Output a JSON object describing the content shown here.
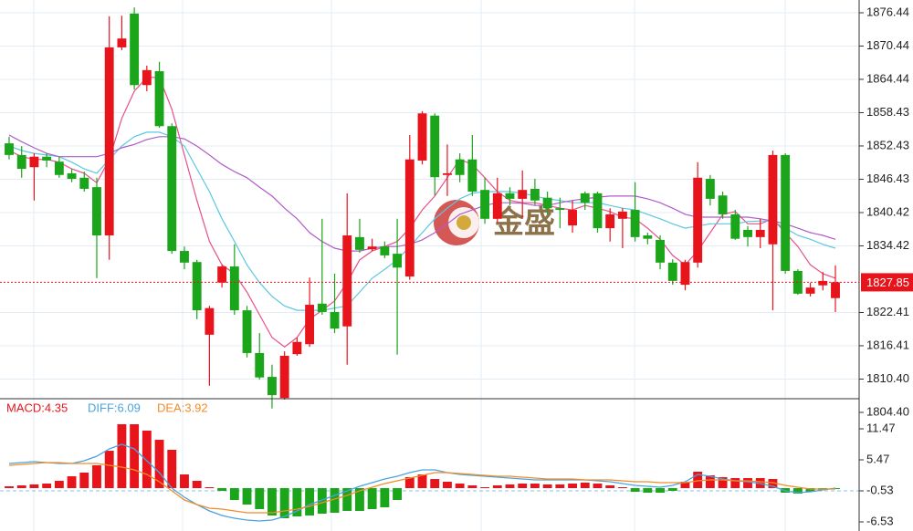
{
  "chart_data": [
    {
      "type": "candlestick",
      "up_color": "#e8141b",
      "down_color": "#1aa51a",
      "open": [
        1852.9,
        1850.8,
        1848.6,
        1850.5,
        1849.6,
        1847.5,
        1846.7,
        1845.0,
        1836.3,
        1870.2,
        1876.3,
        1863.4,
        1865.9,
        1856.0,
        1833.5,
        1831.5,
        1818.4,
        1827.8,
        1830.7,
        1822.8,
        1815.1,
        1810.8,
        1807.0,
        1814.9,
        1816.7,
        1824.0,
        1822.5,
        1819.9,
        1836.0,
        1833.8,
        1834.3,
        1833.0,
        1828.9,
        1849.8,
        1857.9,
        1847.2,
        1850.0,
        1850.0,
        1844.5,
        1839.3,
        1843.9,
        1842.9,
        1844.7,
        1843.1,
        1841.2,
        1838.1,
        1843.9,
        1843.9,
        1837.6,
        1839.3,
        1840.9,
        1836.3,
        1835.5,
        1831.4,
        1827.4,
        1831.4,
        1846.5,
        1843.5,
        1840.1,
        1837.3,
        1836.0,
        1834.7,
        1850.8,
        1829.9,
        1825.8,
        1827.3,
        1825.0
      ],
      "high": [
        1854.1,
        1852.4,
        1851.1,
        1851.1,
        1850.5,
        1848.3,
        1847.8,
        1846.7,
        1875.8,
        1875.9,
        1877.4,
        1866.9,
        1867.6,
        1856.5,
        1834.3,
        1831.9,
        1823.6,
        1831.0,
        1834.7,
        1823.6,
        1818.7,
        1813.0,
        1815.4,
        1817.9,
        1828.7,
        1839.3,
        1829.4,
        1843.9,
        1839.3,
        1835.7,
        1835.2,
        1839.3,
        1854.4,
        1858.7,
        1858.3,
        1852.7,
        1851.1,
        1854.4,
        1846.7,
        1846.7,
        1845.0,
        1848.0,
        1846.5,
        1844.2,
        1843.1,
        1842.6,
        1844.2,
        1844.2,
        1841.2,
        1841.2,
        1845.9,
        1836.8,
        1836.3,
        1832.0,
        1831.9,
        1849.5,
        1847.2,
        1844.2,
        1840.9,
        1838.0,
        1839.3,
        1851.6,
        1851.1,
        1830.2,
        1827.8,
        1829.7,
        1830.9
      ],
      "low": [
        1850.0,
        1846.7,
        1842.6,
        1848.6,
        1846.7,
        1845.9,
        1844.2,
        1828.6,
        1831.9,
        1869.7,
        1862.6,
        1862.3,
        1855.7,
        1833.0,
        1830.2,
        1821.2,
        1809.2,
        1826.9,
        1822.0,
        1814.3,
        1810.3,
        1805.1,
        1806.7,
        1814.6,
        1816.2,
        1822.0,
        1818.7,
        1813.0,
        1833.2,
        1833.5,
        1832.2,
        1814.8,
        1828.3,
        1849.1,
        1843.5,
        1843.4,
        1845.9,
        1843.4,
        1838.4,
        1838.6,
        1841.7,
        1839.3,
        1841.7,
        1840.1,
        1837.6,
        1836.8,
        1840.9,
        1836.8,
        1835.2,
        1834.0,
        1835.2,
        1834.7,
        1830.2,
        1827.4,
        1826.4,
        1830.5,
        1841.7,
        1839.3,
        1835.5,
        1834.3,
        1834.0,
        1822.8,
        1829.4,
        1825.6,
        1825.3,
        1826.4,
        1822.5
      ],
      "close": [
        1850.8,
        1848.3,
        1850.5,
        1849.8,
        1847.2,
        1846.5,
        1844.7,
        1836.3,
        1870.2,
        1871.8,
        1863.4,
        1866.1,
        1856.0,
        1833.5,
        1831.4,
        1822.8,
        1823.2,
        1830.7,
        1822.8,
        1815.1,
        1810.7,
        1807.5,
        1814.6,
        1817.1,
        1823.8,
        1822.5,
        1819.5,
        1836.3,
        1833.7,
        1834.3,
        1832.7,
        1830.5,
        1850.0,
        1858.3,
        1846.8,
        1847.5,
        1847.2,
        1844.2,
        1839.3,
        1843.9,
        1842.9,
        1844.5,
        1842.6,
        1841.2,
        1840.9,
        1840.9,
        1842.2,
        1837.6,
        1840.1,
        1840.6,
        1836.0,
        1835.7,
        1831.4,
        1828.1,
        1831.5,
        1846.7,
        1842.9,
        1840.1,
        1835.7,
        1836.0,
        1837.3,
        1850.8,
        1829.9,
        1825.8,
        1826.9,
        1828.1,
        1827.85
      ],
      "overlays": [
        {
          "color": "#e8508a",
          "values": [
            1851.6,
            1850.5,
            1850.0,
            1850.0,
            1849.5,
            1848.3,
            1847.5,
            1845.8,
            1850.0,
            1857.4,
            1862.3,
            1864.8,
            1864.8,
            1859.0,
            1850.8,
            1842.6,
            1835.2,
            1831.0,
            1829.4,
            1826.1,
            1822.0,
            1817.9,
            1816.2,
            1817.9,
            1821.2,
            1822.8,
            1824.5,
            1827.8,
            1831.9,
            1833.5,
            1834.3,
            1835.2,
            1837.6,
            1840.9,
            1843.4,
            1846.7,
            1850.0,
            1849.1,
            1846.7,
            1844.2,
            1842.6,
            1842.2,
            1842.2,
            1841.7,
            1841.2,
            1840.9,
            1841.7,
            1841.2,
            1840.6,
            1839.6,
            1839.3,
            1837.6,
            1835.6,
            1832.7,
            1831.0,
            1833.5,
            1836.8,
            1840.1,
            1840.6,
            1838.4,
            1838.4,
            1839.3,
            1836.8,
            1834.3,
            1831.0,
            1829.4,
            1828.6
          ]
        },
        {
          "color": "#5bc8e0",
          "values": [
            1852.4,
            1851.6,
            1851.1,
            1850.8,
            1850.5,
            1849.5,
            1848.3,
            1847.5,
            1850.0,
            1852.4,
            1854.1,
            1854.9,
            1854.9,
            1854.1,
            1852.4,
            1848.3,
            1844.2,
            1839.3,
            1835.2,
            1831.0,
            1827.8,
            1825.3,
            1823.6,
            1822.8,
            1822.8,
            1822.8,
            1823.2,
            1823.6,
            1826.1,
            1828.6,
            1830.2,
            1831.9,
            1834.3,
            1836.8,
            1839.3,
            1841.2,
            1842.9,
            1843.9,
            1844.2,
            1844.2,
            1844.2,
            1843.9,
            1843.4,
            1842.9,
            1842.6,
            1842.2,
            1842.2,
            1842.2,
            1841.7,
            1841.2,
            1840.9,
            1840.1,
            1839.3,
            1838.4,
            1837.6,
            1838.0,
            1838.4,
            1838.4,
            1838.4,
            1838.8,
            1838.9,
            1838.9,
            1837.6,
            1836.3,
            1835.6,
            1834.7,
            1834.0
          ]
        },
        {
          "color": "#b05cc8",
          "values": [
            1854.4,
            1853.2,
            1852.1,
            1851.1,
            1850.5,
            1850.5,
            1850.5,
            1850.5,
            1851.1,
            1852.1,
            1852.7,
            1853.6,
            1854.1,
            1854.1,
            1853.7,
            1852.4,
            1850.8,
            1849.1,
            1847.8,
            1846.7,
            1845.0,
            1843.4,
            1841.2,
            1839.3,
            1836.8,
            1835.2,
            1834.0,
            1833.5,
            1833.5,
            1834.0,
            1834.3,
            1834.3,
            1834.7,
            1835.5,
            1836.8,
            1838.4,
            1840.1,
            1840.9,
            1841.7,
            1842.2,
            1842.2,
            1842.1,
            1841.7,
            1841.7,
            1842.2,
            1842.6,
            1842.9,
            1843.2,
            1843.4,
            1843.4,
            1843.4,
            1842.9,
            1842.2,
            1841.2,
            1840.1,
            1839.6,
            1839.6,
            1839.6,
            1839.6,
            1839.6,
            1839.3,
            1838.9,
            1838.4,
            1837.6,
            1836.8,
            1836.3,
            1835.6
          ]
        }
      ],
      "ylim": [
        1803.74,
        1878.74
      ],
      "yticks": [
        1876.44,
        1870.44,
        1864.44,
        1858.43,
        1852.43,
        1846.43,
        1840.42,
        1834.42,
        1822.41,
        1816.41,
        {
          "value": 1810.4,
          "label": "1810.40"
        },
        {
          "value": 1804.4,
          "label": "1804.40"
        }
      ],
      "last_price": 1827.85,
      "last_price_color": "#e8141b",
      "watermark": "金盛",
      "grid": true
    },
    {
      "type": "macd",
      "histogram": {
        "name": "MACD:4.35",
        "up_color": "#e8141b",
        "down_color": "#1aa51a",
        "values": [
          0.35,
          0.53,
          0.71,
          0.88,
          1.41,
          2.29,
          3.0,
          4.41,
          7.23,
          12.35,
          12.35,
          11.12,
          9.35,
          7.41,
          2.65,
          1.41,
          0.18,
          -0.53,
          -2.29,
          -3.18,
          -4.06,
          -5.29,
          -5.82,
          -5.47,
          -5.29,
          -4.94,
          -4.76,
          -4.41,
          -4.41,
          -4.06,
          -3.71,
          -2.29,
          2.12,
          2.65,
          1.76,
          1.24,
          0.88,
          0.53,
          0.18,
          0.53,
          0.71,
          0.88,
          0.88,
          0.71,
          0.71,
          0.88,
          1.06,
          0.88,
          0.53,
          0.18,
          -0.71,
          -0.88,
          -0.88,
          -0.53,
          1.24,
          3.18,
          2.47,
          2.12,
          1.94,
          1.94,
          1.94,
          1.76,
          -0.88,
          -1.06,
          -0.71,
          -0.35,
          -0.18
        ]
      },
      "series": [
        {
          "name": "DIFF:6.09",
          "color": "#4aa3df",
          "values": [
            4.76,
            4.94,
            5.12,
            4.94,
            4.76,
            4.76,
            5.29,
            6.18,
            7.59,
            8.47,
            7.59,
            5.29,
            3.0,
            0.0,
            -1.76,
            -3.18,
            -4.41,
            -5.29,
            -5.82,
            -6.18,
            -6.35,
            -6.18,
            -5.47,
            -4.41,
            -3.18,
            -2.29,
            -1.41,
            -0.53,
            0.35,
            1.06,
            1.76,
            2.29,
            3.0,
            3.53,
            3.53,
            3.0,
            2.65,
            2.47,
            2.29,
            2.12,
            1.94,
            1.76,
            1.59,
            1.59,
            1.59,
            1.59,
            1.59,
            1.41,
            1.24,
            0.88,
            0.53,
            0.35,
            0.18,
            0.53,
            1.24,
            2.65,
            2.29,
            1.76,
            1.41,
            1.24,
            0.88,
            0.35,
            -0.53,
            -0.88,
            -0.71,
            -0.35,
            0.0
          ]
        },
        {
          "name": "DEA:3.92",
          "color": "#f28c28",
          "values": [
            4.41,
            4.59,
            4.76,
            4.94,
            4.94,
            4.76,
            4.76,
            4.76,
            4.41,
            4.06,
            3.53,
            2.65,
            1.24,
            -0.53,
            -2.29,
            -3.18,
            -3.88,
            -4.06,
            -4.41,
            -4.76,
            -4.76,
            -4.76,
            -4.41,
            -4.06,
            -3.53,
            -2.82,
            -2.12,
            -1.41,
            -0.53,
            0.18,
            0.88,
            1.41,
            1.94,
            2.47,
            3.0,
            3.0,
            2.82,
            2.65,
            2.47,
            2.29,
            2.29,
            2.12,
            1.94,
            1.76,
            1.76,
            1.76,
            1.59,
            1.59,
            1.59,
            1.41,
            1.24,
            1.24,
            1.06,
            1.06,
            1.06,
            1.41,
            1.59,
            1.59,
            1.41,
            1.41,
            1.24,
            1.06,
            0.53,
            0.18,
            -0.18,
            -0.18,
            -0.18
          ]
        }
      ],
      "ylim": [
        -8.29,
        17.29
      ],
      "yticks": [
        11.47,
        5.47,
        -0.53,
        -6.53
      ],
      "baseline": -0.53,
      "grid": true
    }
  ]
}
